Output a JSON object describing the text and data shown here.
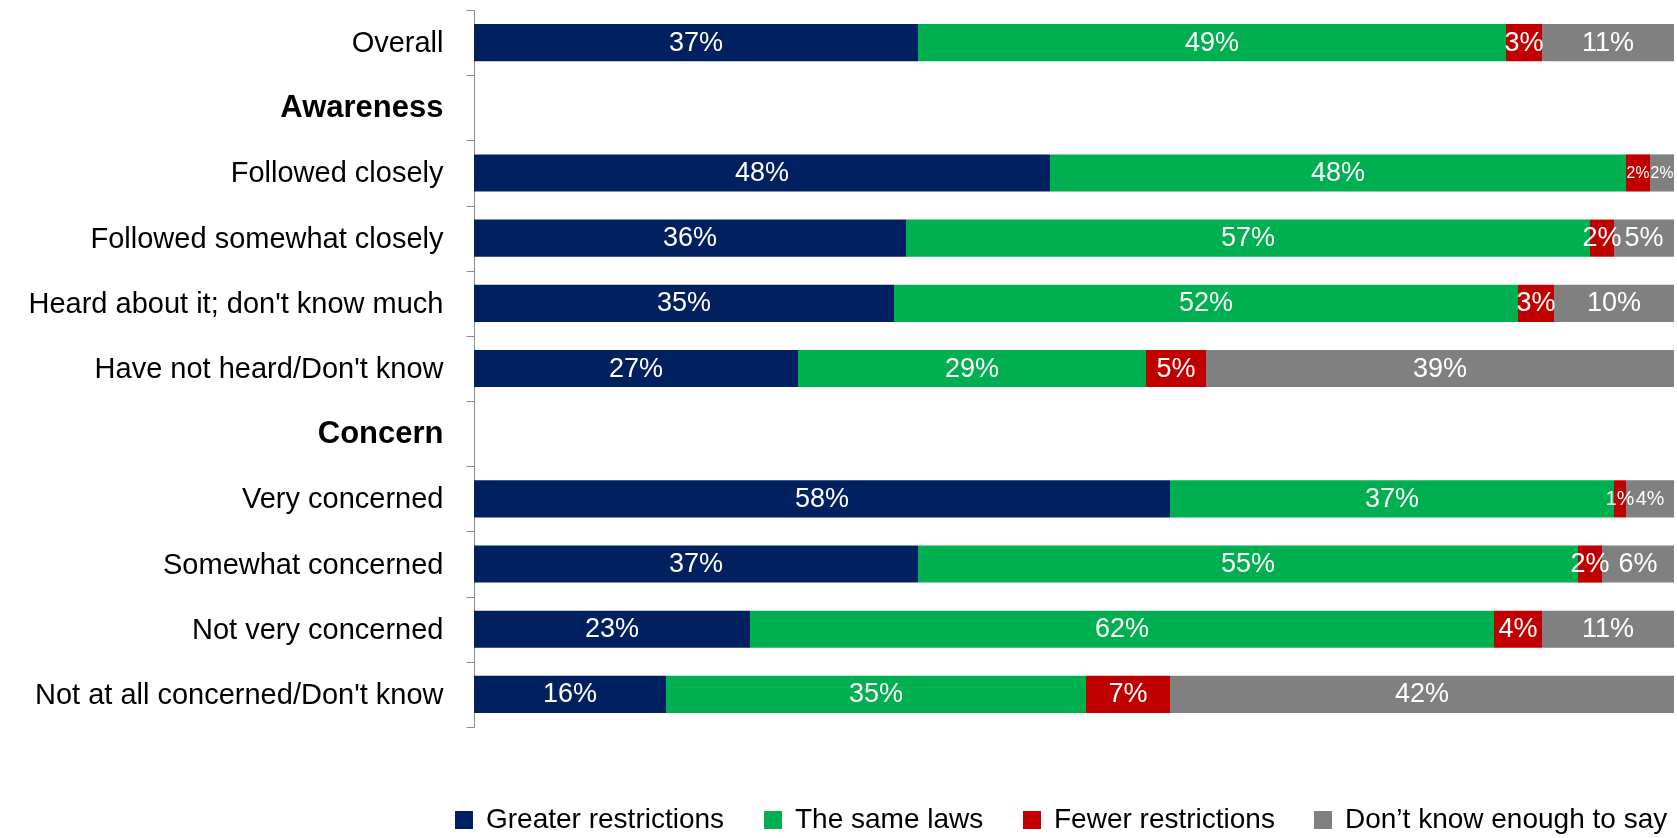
{
  "chart_data": {
    "type": "bar",
    "orientation": "horizontal",
    "stacked": true,
    "legend": "bottom",
    "tick_labels": "y",
    "categories": [
      "Overall",
      "Awareness",
      "Followed closely",
      "Followed somewhat closely",
      "Heard about it; don't know much",
      "Have not heard/Don't know",
      "Concern",
      "Very concerned",
      "Somewhat concerned",
      "Not very concerned",
      "Not at all concerned/Don't know"
    ],
    "series": [
      {
        "name": "Greater restrictions",
        "color": "#002060",
        "values": [
          37,
          null,
          48,
          36,
          35,
          27,
          null,
          58,
          37,
          23,
          16
        ],
        "value_labels": [
          "37%",
          null,
          "48%",
          "36%",
          "35%",
          "27%",
          null,
          "58%",
          "37%",
          "23%",
          "16%"
        ]
      },
      {
        "name": "The same laws",
        "color": "#00b050",
        "values": [
          49,
          null,
          48,
          57,
          52,
          29,
          null,
          37,
          55,
          62,
          35
        ],
        "value_labels": [
          "49%",
          null,
          "48%",
          "57%",
          "52%",
          "29%",
          null,
          "37%",
          "55%",
          "62%",
          "35%"
        ]
      },
      {
        "name": "Fewer restrictions",
        "color": "#c00000",
        "values": [
          3,
          null,
          2,
          2,
          3,
          5,
          null,
          1,
          2,
          4,
          7
        ],
        "value_labels": [
          "3%",
          null,
          "2%",
          "2%",
          "3%",
          "5%",
          null,
          "1%",
          "2%",
          "4%",
          "7%"
        ]
      },
      {
        "name": "Don’t know enough to say",
        "color": "#808080",
        "values": [
          11,
          null,
          2,
          5,
          10,
          39,
          null,
          4,
          6,
          11,
          42
        ],
        "value_labels": [
          "11%",
          null,
          "2%",
          "5%",
          "10%",
          "39%",
          null,
          "4%",
          "6%",
          "11%",
          "42%"
        ]
      }
    ]
  }
}
